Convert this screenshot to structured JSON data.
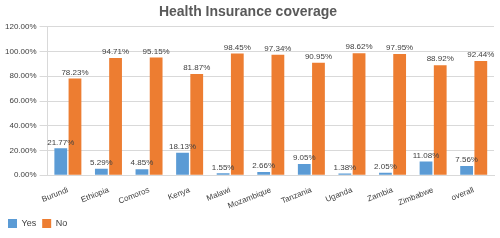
{
  "chart_data": {
    "type": "bar",
    "title": "Health Insurance coverage",
    "categories": [
      "Burundi",
      "Ethiopia",
      "Comoros",
      "Kenya",
      "Malawi",
      "Mozambique",
      "Tanzania",
      "Uganda",
      "Zambia",
      "Zimbabwe",
      "overall"
    ],
    "series": [
      {
        "name": "Yes",
        "color": "#5b9bd5",
        "values": [
          21.77,
          5.29,
          4.85,
          18.13,
          1.55,
          2.66,
          9.05,
          1.38,
          2.05,
          11.08,
          7.56
        ],
        "value_labels": [
          "21.77%",
          "5.29%",
          "4.85%",
          "18.13%",
          "1.55%",
          "2.66%",
          "9.05%",
          "1.38%",
          "2.05%",
          "11.08%",
          "7.56%"
        ]
      },
      {
        "name": "No",
        "color": "#ed7d31",
        "values": [
          78.23,
          94.71,
          95.15,
          81.87,
          98.45,
          97.34,
          90.95,
          98.62,
          97.95,
          88.92,
          92.44
        ],
        "value_labels": [
          "78.23%",
          "94.71%",
          "95.15%",
          "81.87%",
          "98.45%",
          "97.34%",
          "90.95%",
          "98.62%",
          "97.95%",
          "88.92%",
          "92.44%"
        ]
      }
    ],
    "ylim": [
      0,
      120
    ],
    "yticks": [
      {
        "value": 0,
        "label": "0.00%"
      },
      {
        "value": 20,
        "label": "20.00%"
      },
      {
        "value": 40,
        "label": "40.00%"
      },
      {
        "value": 60,
        "label": "60.00%"
      },
      {
        "value": 80,
        "label": "80.00%"
      },
      {
        "value": 100,
        "label": "100.00%"
      },
      {
        "value": 120,
        "label": "120.00%"
      }
    ],
    "grid": true,
    "legend": "bottom-left",
    "data_labels": true
  }
}
